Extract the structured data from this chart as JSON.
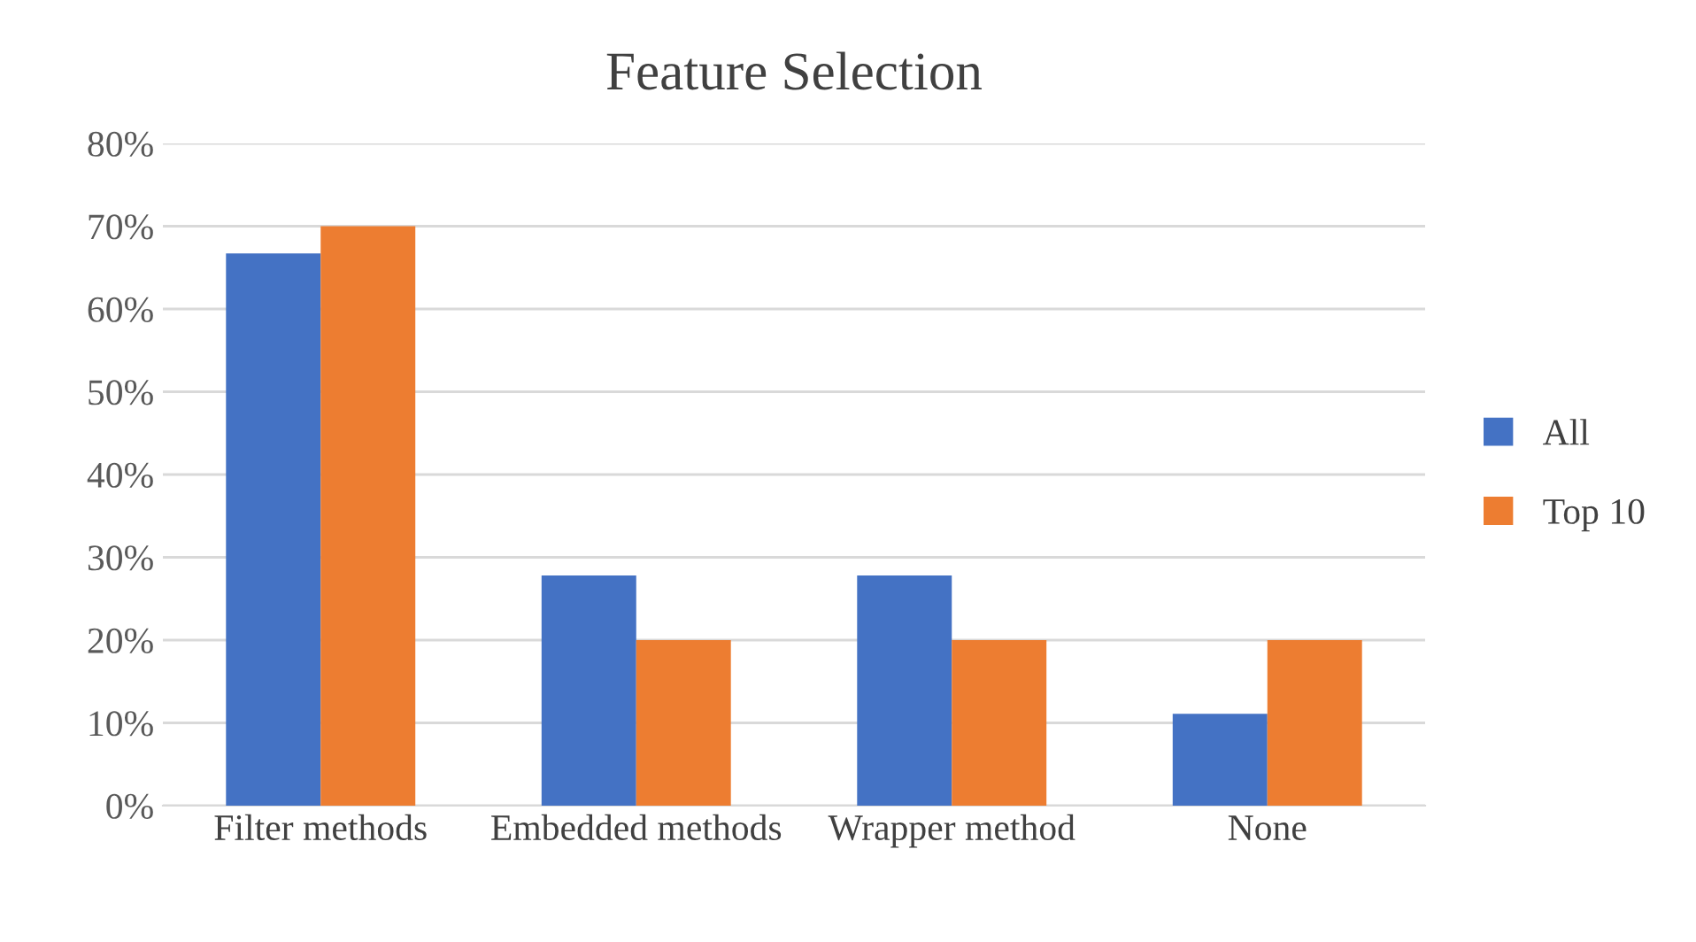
{
  "chart_data": {
    "type": "bar",
    "title": "Feature Selection",
    "categories": [
      "Filter methods",
      "Embedded methods",
      "Wrapper method",
      "None"
    ],
    "series": [
      {
        "name": "All",
        "color": "#4472c4",
        "values": [
          66.7,
          27.8,
          27.8,
          11.1
        ]
      },
      {
        "name": "Top 10",
        "color": "#ed7d31",
        "values": [
          70,
          20,
          20,
          20
        ]
      }
    ],
    "ylim": [
      0,
      80
    ],
    "yticks": [
      {
        "value": 0,
        "label": "0%"
      },
      {
        "value": 10,
        "label": "10%"
      },
      {
        "value": 20,
        "label": "20%"
      },
      {
        "value": 30,
        "label": "30%"
      },
      {
        "value": 40,
        "label": "40%"
      },
      {
        "value": 50,
        "label": "50%"
      },
      {
        "value": 60,
        "label": "60%"
      },
      {
        "value": 70,
        "label": "70%"
      },
      {
        "value": 80,
        "label": "80%"
      }
    ],
    "grid": "y",
    "legend": "right"
  }
}
